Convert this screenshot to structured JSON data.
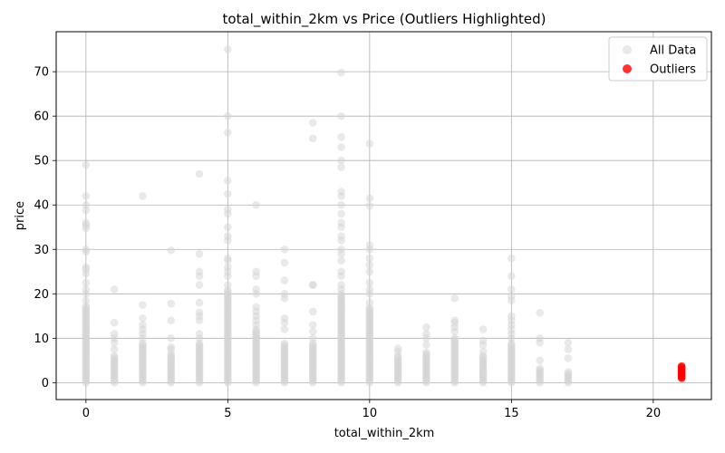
{
  "chart_data": {
    "type": "scatter",
    "title": "total_within_2km vs Price (Outliers Highlighted)",
    "xlabel": "total_within_2km",
    "ylabel": "price",
    "xlim": [
      -1.05,
      22.05
    ],
    "ylim": [
      -3.8,
      79
    ],
    "xticks": [
      0,
      5,
      10,
      15,
      20
    ],
    "yticks": [
      0,
      10,
      20,
      30,
      40,
      50,
      60,
      70
    ],
    "grid": true,
    "legend": "top-right",
    "series": [
      {
        "name": "All Data",
        "color": "#d3d3d3",
        "opacity": 0.5,
        "columns": [
          {
            "x": 0,
            "dense_max": 17.5,
            "extra": [
              18.5,
              20,
              21,
              22.5,
              24.5,
              25.5,
              26,
              29.5,
              30,
              34.8,
              35.5,
              36,
              38.8,
              40,
              42,
              49
            ]
          },
          {
            "x": 1,
            "dense_max": 6,
            "extra": [
              7.5,
              9,
              10,
              11,
              13.5,
              21
            ]
          },
          {
            "x": 2,
            "dense_max": 9,
            "extra": [
              10,
              11,
              12,
              13,
              14.5,
              17.5,
              42
            ]
          },
          {
            "x": 3,
            "dense_max": 6.5,
            "extra": [
              7.5,
              8,
              10,
              14,
              17.8,
              29.8
            ]
          },
          {
            "x": 4,
            "dense_max": 9,
            "extra": [
              10,
              11,
              14,
              15,
              15.8,
              18,
              22,
              24,
              25,
              29,
              47
            ]
          },
          {
            "x": 5,
            "dense_max": 21,
            "extra": [
              22,
              24,
              25,
              26,
              27.5,
              28,
              32,
              33,
              35,
              38,
              39,
              42.5,
              45.5,
              56.3,
              60,
              75
            ]
          },
          {
            "x": 6,
            "dense_max": 12,
            "extra": [
              13,
              14,
              15,
              16,
              17,
              20,
              21,
              24,
              25,
              40
            ]
          },
          {
            "x": 7,
            "dense_max": 9,
            "extra": [
              12,
              13.5,
              14.5,
              19,
              20,
              23,
              27,
              30
            ]
          },
          {
            "x": 8,
            "dense_max": 9,
            "extra": [
              10,
              11.5,
              13,
              16,
              22,
              22,
              55,
              58.5
            ]
          },
          {
            "x": 9,
            "dense_max": 20,
            "extra": [
              21,
              22,
              24,
              25,
              27.5,
              29,
              30,
              32,
              33,
              35,
              36,
              38,
              40,
              42,
              43,
              48.5,
              50,
              53,
              55.3,
              60,
              69.8
            ]
          },
          {
            "x": 10,
            "dense_max": 17,
            "extra": [
              18,
              20,
              21,
              22.5,
              25,
              26.5,
              28,
              30,
              31,
              39.8,
              41.5,
              53.8
            ]
          },
          {
            "x": 11,
            "dense_max": 6,
            "extra": [
              7,
              7.7
            ]
          },
          {
            "x": 12,
            "dense_max": 7,
            "extra": [
              8.5,
              10,
              11,
              12.5
            ]
          },
          {
            "x": 13,
            "dense_max": 10,
            "extra": [
              11.5,
              12.5,
              13.5,
              14,
              19
            ]
          },
          {
            "x": 14,
            "dense_max": 6,
            "extra": [
              7,
              8.5,
              9.5,
              12
            ]
          },
          {
            "x": 15,
            "dense_max": 9,
            "extra": [
              10,
              11,
              12,
              13,
              14,
              15,
              18.5,
              19.5,
              21,
              24,
              28
            ]
          },
          {
            "x": 16,
            "dense_max": 3.5,
            "extra": [
              5,
              9,
              10,
              15.7
            ]
          },
          {
            "x": 17,
            "dense_max": 2.5,
            "extra": [
              5.5,
              7.5,
              9
            ]
          }
        ]
      },
      {
        "name": "Outliers",
        "color": "#ff0000",
        "opacity": 0.8,
        "points": [
          {
            "x": 21,
            "y": 1.0
          },
          {
            "x": 21,
            "y": 1.3
          },
          {
            "x": 21,
            "y": 1.6
          },
          {
            "x": 21,
            "y": 1.9
          },
          {
            "x": 21,
            "y": 2.2
          },
          {
            "x": 21,
            "y": 2.5
          },
          {
            "x": 21,
            "y": 2.8
          },
          {
            "x": 21,
            "y": 3.1
          },
          {
            "x": 21,
            "y": 3.4
          },
          {
            "x": 21,
            "y": 3.7
          }
        ]
      }
    ]
  }
}
